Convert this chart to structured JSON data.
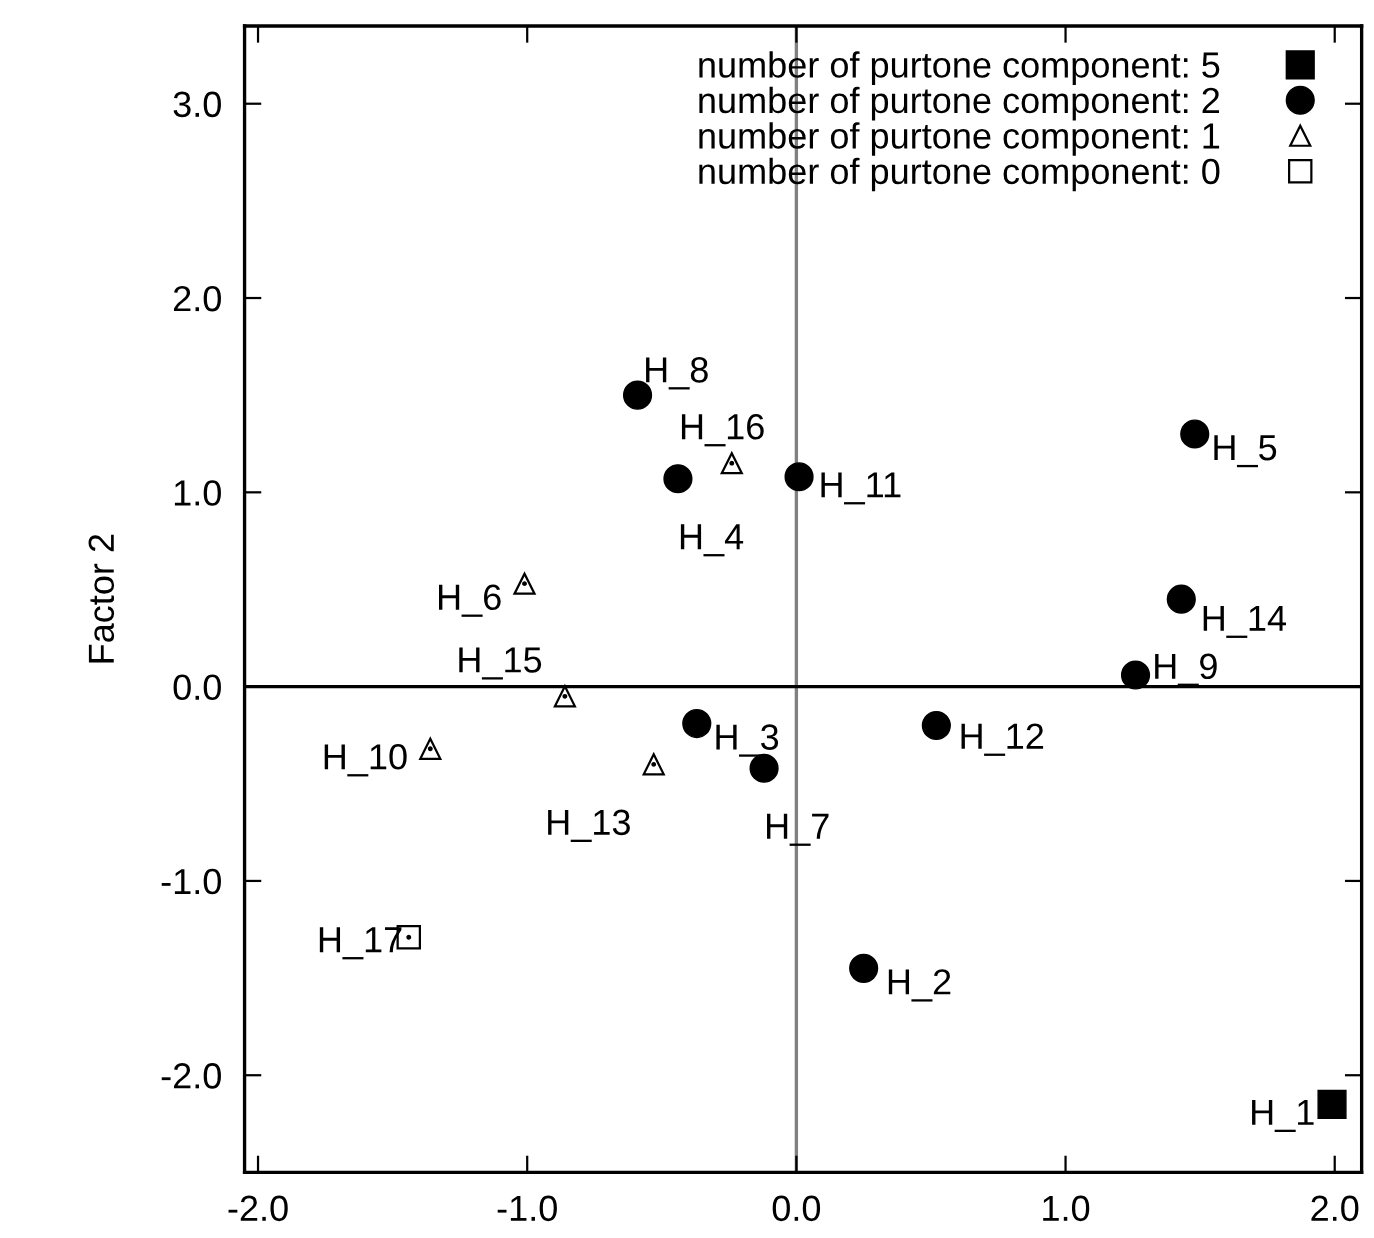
{
  "chart_data": {
    "type": "scatter",
    "ylabel": "Factor 2",
    "xlim": [
      -2.05,
      2.1
    ],
    "ylim": [
      -2.5,
      3.4
    ],
    "xticks": [
      {
        "value": -2,
        "label": "-2.0"
      },
      {
        "value": -1,
        "label": "-1.0"
      },
      {
        "value": 0,
        "label": "0.0"
      },
      {
        "value": 1,
        "label": "1.0"
      },
      {
        "value": 2,
        "label": "2.0"
      }
    ],
    "yticks": [
      {
        "value": -2,
        "label": "-2.0"
      },
      {
        "value": -1,
        "label": "-1.0"
      },
      {
        "value": 0,
        "label": "0.0"
      },
      {
        "value": 1,
        "label": "1.0"
      },
      {
        "value": 2,
        "label": "2.0"
      },
      {
        "value": 3,
        "label": "3.0"
      }
    ],
    "grid": false,
    "legend": "top right",
    "ref_lines": [
      {
        "axis": "x",
        "value": 0,
        "color": "#808080"
      },
      {
        "axis": "y",
        "value": 0,
        "color": "#000000"
      }
    ],
    "series": [
      {
        "name": "number of purtone component: 5",
        "color": "#000000",
        "marker": "square",
        "x": [
          1.99
        ],
        "values": [
          -2.15
        ]
      },
      {
        "name": "number of purtone component: 2",
        "color": "#000000",
        "marker": "circle",
        "x": [
          0.25,
          -0.37,
          -0.44,
          1.48,
          -0.12,
          -0.59,
          1.26,
          0.01,
          0.52,
          1.43
        ],
        "values": [
          -1.45,
          -0.19,
          1.07,
          1.3,
          -0.42,
          1.5,
          0.06,
          1.08,
          -0.2,
          0.45
        ]
      },
      {
        "name": "number of purtone component: 1",
        "color": "#ffffff",
        "marker": "triangle",
        "x": [
          -1.01,
          -1.36,
          -0.53,
          -0.86,
          -0.24
        ],
        "values": [
          0.53,
          -0.32,
          -0.4,
          -0.05,
          1.15
        ]
      },
      {
        "name": "number of purtone component: 0",
        "color": "#ffffff",
        "marker": "square",
        "x": [
          -1.44
        ],
        "values": [
          -1.29
        ]
      }
    ],
    "annotations": [
      {
        "text": "H_1",
        "x": 1.99,
        "y": -2.15
      },
      {
        "text": "H_2",
        "x": 0.25,
        "y": -1.45
      },
      {
        "text": "H_3",
        "x": -0.37,
        "y": -0.19
      },
      {
        "text": "H_4",
        "x": -0.44,
        "y": 1.07
      },
      {
        "text": "H_5",
        "x": 1.48,
        "y": 1.3
      },
      {
        "text": "H_6",
        "x": -1.01,
        "y": 0.53
      },
      {
        "text": "H_7",
        "x": -0.12,
        "y": -0.42
      },
      {
        "text": "H_8",
        "x": -0.59,
        "y": 1.5
      },
      {
        "text": "H_9",
        "x": 1.26,
        "y": 0.06
      },
      {
        "text": "H_10",
        "x": -1.36,
        "y": -0.32
      },
      {
        "text": "H_11",
        "x": 0.01,
        "y": 1.08
      },
      {
        "text": "H_12",
        "x": 0.52,
        "y": -0.2
      },
      {
        "text": "H_13",
        "x": -0.53,
        "y": -0.4
      },
      {
        "text": "H_14",
        "x": 1.43,
        "y": 0.45
      },
      {
        "text": "H_15",
        "x": -0.86,
        "y": -0.05
      },
      {
        "text": "H_16",
        "x": -0.24,
        "y": 1.15
      },
      {
        "text": "H_17",
        "x": -1.44,
        "y": -1.29
      }
    ]
  }
}
